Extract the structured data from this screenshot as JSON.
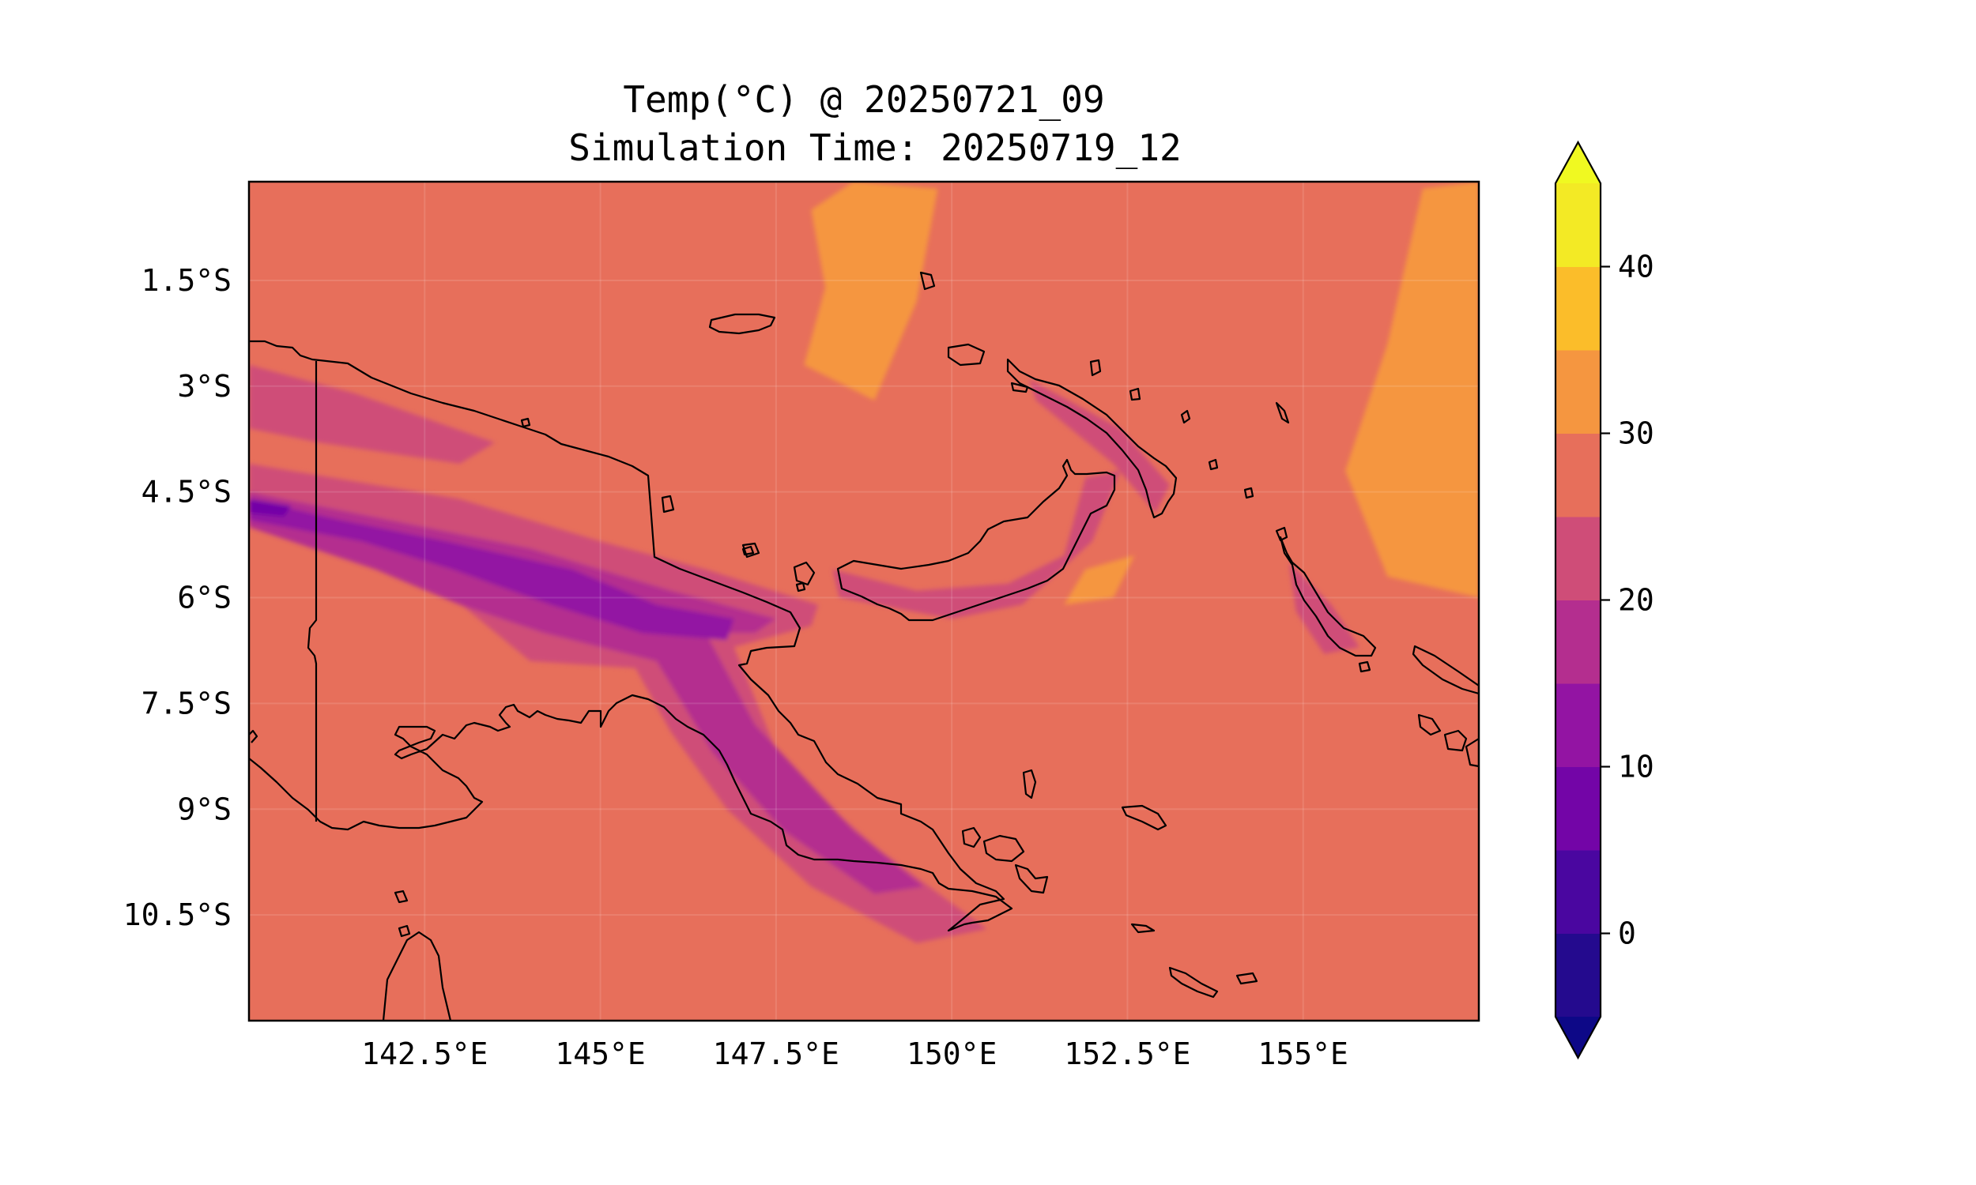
{
  "title": {
    "line1": "Temp(°C) @ 20250721_09",
    "line2": "Simulation Time: 20250719_12"
  },
  "chart_data": {
    "type": "heatmap",
    "subtype": "filled-contour map",
    "variable": "Temp(°C)",
    "valid_time": "20250721_09",
    "simulation_time": "20250719_12",
    "extent": {
      "lon": [
        140.0,
        157.5
      ],
      "lat": [
        -12.0,
        -0.1
      ]
    },
    "x_ticks": [
      {
        "value": 142.5,
        "label": "142.5°E"
      },
      {
        "value": 145.0,
        "label": "145°E"
      },
      {
        "value": 147.5,
        "label": "147.5°E"
      },
      {
        "value": 150.0,
        "label": "150°E"
      },
      {
        "value": 152.5,
        "label": "152.5°E"
      },
      {
        "value": 155.0,
        "label": "155°E"
      }
    ],
    "y_ticks": [
      {
        "value": -1.5,
        "label": "1.5°S"
      },
      {
        "value": -3.0,
        "label": "3°S"
      },
      {
        "value": -4.5,
        "label": "4.5°S"
      },
      {
        "value": -6.0,
        "label": "6°S"
      },
      {
        "value": -7.5,
        "label": "7.5°S"
      },
      {
        "value": -9.0,
        "label": "9°S"
      },
      {
        "value": -10.5,
        "label": "10.5°S"
      }
    ],
    "grid": true,
    "colorbar": {
      "position": "right",
      "extend": "both",
      "levels": [
        -5,
        0,
        5,
        10,
        15,
        20,
        25,
        30,
        35,
        40,
        45
      ],
      "colors": [
        "#240a8e",
        "#4a06a0",
        "#7305a7",
        "#9314a3",
        "#b42e8f",
        "#cf4d78",
        "#e76f5b",
        "#f59640",
        "#fbbd2a",
        "#f3ea25"
      ],
      "under_color": "#0d0887",
      "over_color": "#f0f921",
      "ticks": [
        {
          "value": 0,
          "label": "0"
        },
        {
          "value": 10,
          "label": "10"
        },
        {
          "value": 20,
          "label": "20"
        },
        {
          "value": 30,
          "label": "30"
        },
        {
          "value": 40,
          "label": "40"
        }
      ]
    },
    "field_regions": [
      {
        "level": "25-30",
        "area": "background (ocean and lowlands)"
      },
      {
        "level": "30-35",
        "area": "north of Manus Island",
        "lonlat": [
          [
            148.6,
            -0.1
          ],
          [
            149.8,
            -0.2
          ],
          [
            149.5,
            -1.8
          ],
          [
            148.9,
            -3.2
          ],
          [
            147.9,
            -2.7
          ],
          [
            148.2,
            -1.6
          ],
          [
            148.0,
            -0.5
          ]
        ]
      },
      {
        "level": "30-35",
        "area": "eastern margin, east of Bougainville",
        "lonlat": [
          [
            157.5,
            -0.1
          ],
          [
            156.7,
            -0.2
          ],
          [
            156.2,
            -2.4
          ],
          [
            155.6,
            -4.2
          ],
          [
            156.2,
            -5.7
          ],
          [
            157.5,
            -6.0
          ]
        ]
      },
      {
        "level": "30-35",
        "area": "off New Britain south coast",
        "lonlat": [
          [
            151.9,
            -5.6
          ],
          [
            152.6,
            -5.4
          ],
          [
            152.3,
            -6.0
          ],
          [
            151.6,
            -6.1
          ]
        ]
      },
      {
        "level": "20-25",
        "area": "PNG Highlands",
        "lonlat": [
          [
            140.0,
            -4.1
          ],
          [
            143.0,
            -4.6
          ],
          [
            145.0,
            -5.2
          ],
          [
            146.5,
            -5.6
          ],
          [
            148.1,
            -6.1
          ],
          [
            148.0,
            -6.4
          ],
          [
            146.9,
            -6.7
          ],
          [
            147.6,
            -8.4
          ],
          [
            149.0,
            -9.6
          ],
          [
            150.5,
            -10.7
          ],
          [
            149.5,
            -10.9
          ],
          [
            148.0,
            -10.1
          ],
          [
            146.8,
            -9.0
          ],
          [
            146.0,
            -7.9
          ],
          [
            145.5,
            -7.0
          ],
          [
            144.0,
            -6.9
          ],
          [
            142.9,
            -6.0
          ],
          [
            141.5,
            -5.4
          ],
          [
            140.0,
            -4.8
          ]
        ]
      },
      {
        "level": "20-25",
        "area": "northern New Guinea coastal ranges",
        "lonlat": [
          [
            140.0,
            -2.7
          ],
          [
            141.5,
            -3.1
          ],
          [
            143.5,
            -3.8
          ],
          [
            143.0,
            -4.1
          ],
          [
            141.0,
            -3.8
          ],
          [
            140.0,
            -3.6
          ]
        ]
      },
      {
        "level": "20-25",
        "area": "New Britain",
        "lonlat": [
          [
            148.3,
            -5.6
          ],
          [
            149.5,
            -5.9
          ],
          [
            150.8,
            -5.8
          ],
          [
            151.6,
            -5.4
          ],
          [
            151.9,
            -4.3
          ],
          [
            152.4,
            -4.2
          ],
          [
            152.0,
            -5.2
          ],
          [
            151.0,
            -6.1
          ],
          [
            150.0,
            -6.3
          ],
          [
            148.4,
            -6.0
          ]
        ]
      },
      {
        "level": "20-25",
        "area": "New Ireland",
        "lonlat": [
          [
            151.1,
            -2.9
          ],
          [
            152.4,
            -3.6
          ],
          [
            153.1,
            -4.4
          ],
          [
            152.9,
            -4.8
          ],
          [
            152.3,
            -4.1
          ],
          [
            151.2,
            -3.2
          ]
        ]
      },
      {
        "level": "20-25",
        "area": "Bougainville",
        "lonlat": [
          [
            154.8,
            -5.5
          ],
          [
            155.4,
            -6.1
          ],
          [
            155.8,
            -6.7
          ],
          [
            155.3,
            -6.8
          ],
          [
            154.9,
            -6.2
          ]
        ]
      },
      {
        "level": "15-20",
        "area": "central highland core",
        "lonlat": [
          [
            140.0,
            -4.5
          ],
          [
            142.5,
            -5.0
          ],
          [
            144.0,
            -5.3
          ],
          [
            146.0,
            -5.9
          ],
          [
            147.5,
            -6.3
          ],
          [
            147.2,
            -6.5
          ],
          [
            146.5,
            -6.5
          ],
          [
            147.2,
            -7.8
          ],
          [
            148.6,
            -9.3
          ],
          [
            149.6,
            -10.1
          ],
          [
            148.9,
            -10.2
          ],
          [
            147.6,
            -9.3
          ],
          [
            146.6,
            -8.2
          ],
          [
            145.8,
            -6.9
          ],
          [
            144.2,
            -6.5
          ],
          [
            143.0,
            -6.1
          ],
          [
            141.8,
            -5.6
          ],
          [
            140.0,
            -5.0
          ]
        ]
      },
      {
        "level": "10-15",
        "area": "highest peaks (western and central highlands)",
        "lonlat": [
          [
            140.0,
            -4.6
          ],
          [
            141.3,
            -4.9
          ],
          [
            142.8,
            -5.2
          ],
          [
            144.6,
            -5.6
          ],
          [
            145.8,
            -6.1
          ],
          [
            146.9,
            -6.3
          ],
          [
            146.8,
            -6.6
          ],
          [
            145.6,
            -6.5
          ],
          [
            144.3,
            -6.1
          ],
          [
            142.9,
            -5.6
          ],
          [
            141.6,
            -5.2
          ],
          [
            140.0,
            -4.9
          ]
        ]
      },
      {
        "level": "5-10",
        "area": "western summit",
        "lonlat": [
          [
            140.0,
            -4.6
          ],
          [
            140.6,
            -4.7
          ],
          [
            140.5,
            -4.85
          ],
          [
            140.0,
            -4.8
          ]
        ]
      }
    ],
    "coastlines": "New Guinea, New Britain, New Ireland, Manus, Bougainville, Solomon Islands, D'Entrecasteaux Islands and Cape York tip",
    "border": "Indonesia / Papua New Guinea border near 141°E"
  }
}
